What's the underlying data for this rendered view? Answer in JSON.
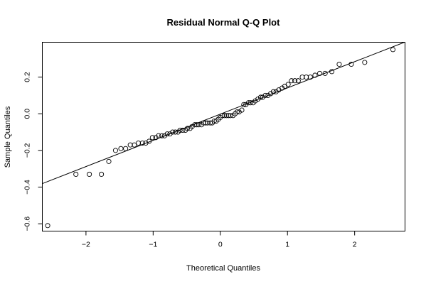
{
  "chart_data": {
    "type": "scatter",
    "title": "Residual Normal Q-Q Plot",
    "xlabel": "Theoretical Quantiles",
    "ylabel": "Sample Quantiles",
    "xlim": [
      -2.65,
      2.75
    ],
    "ylim": [
      -0.64,
      0.39
    ],
    "xticks": [
      -2,
      -1,
      0,
      1,
      2
    ],
    "xtick_labels": [
      "−2",
      "−1",
      "0",
      "1",
      "2"
    ],
    "yticks": [
      -0.6,
      -0.4,
      -0.2,
      0.0,
      0.2
    ],
    "ytick_labels": [
      "−0.6",
      "−0.4",
      "−0.2",
      "0.0",
      "0.2"
    ],
    "grid": false,
    "reference_line": {
      "intercept": -0.002,
      "slope": 0.143
    },
    "points": [
      [
        -2.57,
        -0.61
      ],
      [
        -2.15,
        -0.33
      ],
      [
        -1.95,
        -0.33
      ],
      [
        -1.77,
        -0.33
      ],
      [
        -1.66,
        -0.26
      ],
      [
        -1.56,
        -0.2
      ],
      [
        -1.48,
        -0.19
      ],
      [
        -1.41,
        -0.19
      ],
      [
        -1.34,
        -0.17
      ],
      [
        -1.28,
        -0.17
      ],
      [
        -1.22,
        -0.16
      ],
      [
        -1.16,
        -0.16
      ],
      [
        -1.11,
        -0.16
      ],
      [
        -1.06,
        -0.15
      ],
      [
        -1.01,
        -0.13
      ],
      [
        -0.96,
        -0.13
      ],
      [
        -0.92,
        -0.12
      ],
      [
        -0.87,
        -0.12
      ],
      [
        -0.83,
        -0.12
      ],
      [
        -0.79,
        -0.11
      ],
      [
        -0.75,
        -0.11
      ],
      [
        -0.71,
        -0.1
      ],
      [
        -0.67,
        -0.1
      ],
      [
        -0.63,
        -0.1
      ],
      [
        -0.6,
        -0.09
      ],
      [
        -0.56,
        -0.09
      ],
      [
        -0.52,
        -0.09
      ],
      [
        -0.49,
        -0.08
      ],
      [
        -0.45,
        -0.08
      ],
      [
        -0.42,
        -0.07
      ],
      [
        -0.38,
        -0.06
      ],
      [
        -0.35,
        -0.06
      ],
      [
        -0.32,
        -0.06
      ],
      [
        -0.28,
        -0.06
      ],
      [
        -0.25,
        -0.05
      ],
      [
        -0.22,
        -0.05
      ],
      [
        -0.19,
        -0.05
      ],
      [
        -0.15,
        -0.05
      ],
      [
        -0.12,
        -0.05
      ],
      [
        -0.09,
        -0.04
      ],
      [
        -0.06,
        -0.04
      ],
      [
        -0.03,
        -0.03
      ],
      [
        0.0,
        -0.02
      ],
      [
        0.03,
        -0.01
      ],
      [
        0.06,
        -0.01
      ],
      [
        0.09,
        -0.01
      ],
      [
        0.12,
        -0.01
      ],
      [
        0.15,
        -0.01
      ],
      [
        0.19,
        -0.01
      ],
      [
        0.22,
        0.0
      ],
      [
        0.25,
        0.01
      ],
      [
        0.28,
        0.01
      ],
      [
        0.32,
        0.02
      ],
      [
        0.35,
        0.05
      ],
      [
        0.38,
        0.05
      ],
      [
        0.42,
        0.06
      ],
      [
        0.45,
        0.06
      ],
      [
        0.49,
        0.06
      ],
      [
        0.52,
        0.07
      ],
      [
        0.56,
        0.08
      ],
      [
        0.6,
        0.09
      ],
      [
        0.63,
        0.09
      ],
      [
        0.67,
        0.1
      ],
      [
        0.71,
        0.1
      ],
      [
        0.75,
        0.11
      ],
      [
        0.79,
        0.12
      ],
      [
        0.83,
        0.12
      ],
      [
        0.87,
        0.13
      ],
      [
        0.92,
        0.14
      ],
      [
        0.96,
        0.15
      ],
      [
        1.01,
        0.16
      ],
      [
        1.06,
        0.18
      ],
      [
        1.11,
        0.18
      ],
      [
        1.16,
        0.18
      ],
      [
        1.22,
        0.2
      ],
      [
        1.28,
        0.2
      ],
      [
        1.34,
        0.2
      ],
      [
        1.41,
        0.21
      ],
      [
        1.48,
        0.22
      ],
      [
        1.56,
        0.22
      ],
      [
        1.66,
        0.23
      ],
      [
        1.77,
        0.27
      ],
      [
        1.95,
        0.27
      ],
      [
        2.15,
        0.28
      ],
      [
        2.57,
        0.35
      ]
    ]
  }
}
